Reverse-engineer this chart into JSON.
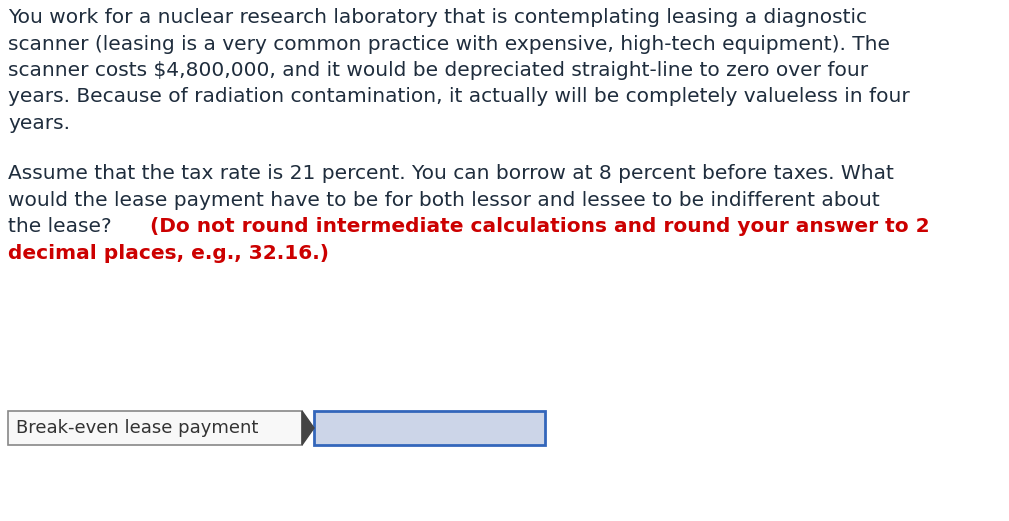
{
  "paragraph1_line1": "You work for a nuclear research laboratory that is contemplating leasing a diagnostic",
  "paragraph1_line2": "scanner (leasing is a very common practice with expensive, high-tech equipment). The",
  "paragraph1_line3": "scanner costs $4,800,000, and it would be depreciated straight-line to zero over four",
  "paragraph1_line4": "years. Because of radiation contamination, it actually will be completely valueless in four",
  "paragraph1_line5": "years.",
  "p2_line1": "Assume that the tax rate is 21 percent. You can borrow at 8 percent before taxes. What",
  "p2_line2": "would the lease payment have to be for both lessor and lessee to be indifferent about",
  "p2_line3_black": "the lease? ",
  "p2_line3_red": "(Do not round intermediate calculations and round your answer to 2",
  "p2_line4_red": "decimal places, e.g., 32.16.)",
  "label": "Break-even lease payment",
  "bg_color": "#ffffff",
  "text_color_black": "#1f2d3d",
  "text_color_red": "#cc0000",
  "font_size": 14.5,
  "font_family": "DejaVu Sans",
  "box_label_color": "#333333",
  "box_border_color": "#888888",
  "input_box_border_color": "#3366bb",
  "input_box_fill": "#ccd5e8",
  "label_box_fill": "#f8f8f8"
}
